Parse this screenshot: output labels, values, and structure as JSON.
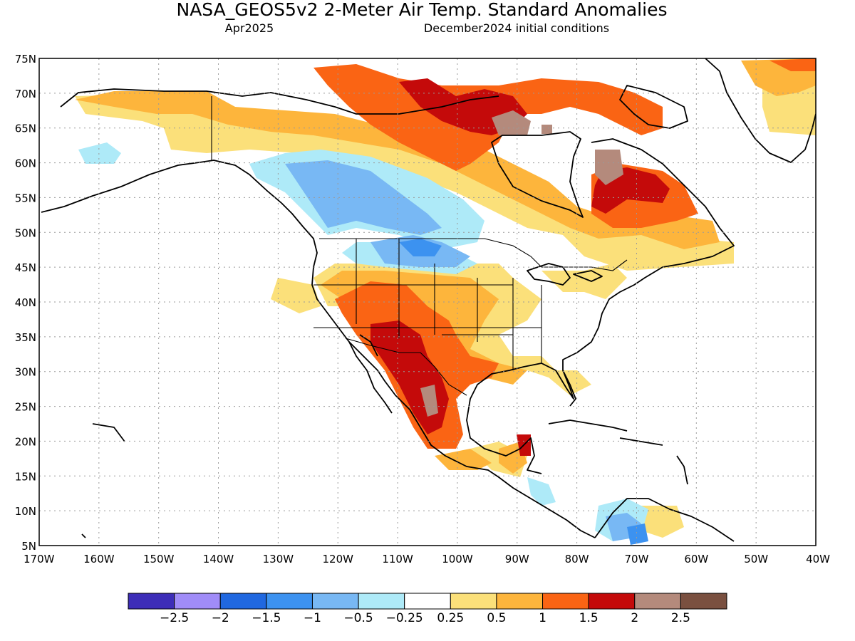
{
  "header": {
    "title": "NASA_GEOS5v2 2-Meter Air Temp. Standard Anomalies",
    "target_month": "Apr2025",
    "init_conditions": "December2024 initial conditions"
  },
  "map": {
    "lat_labels": [
      "75N",
      "70N",
      "65N",
      "60N",
      "55N",
      "50N",
      "45N",
      "40N",
      "35N",
      "30N",
      "25N",
      "20N",
      "15N",
      "10N",
      "5N"
    ],
    "lon_labels": [
      "170W",
      "160W",
      "150W",
      "140W",
      "130W",
      "120W",
      "110W",
      "100W",
      "90W",
      "80W",
      "70W",
      "60W",
      "50W",
      "40W"
    ],
    "lat_range": [
      5,
      75
    ],
    "lon_range": [
      -170,
      -40
    ],
    "grid": "dotted"
  },
  "legend": {
    "colors": [
      "#3d2db8",
      "#a08cf8",
      "#2068e0",
      "#3c92f0",
      "#78b8f4",
      "#aeeaf8",
      "#ffffff",
      "#fbe07a",
      "#fdb53c",
      "#fa6414",
      "#c40a0a",
      "#b48a7c",
      "#7a5040"
    ],
    "labels": [
      "−2.5",
      "−2",
      "−1.5",
      "−1",
      "−0.5",
      "−0.25",
      "0.25",
      "0.5",
      "1",
      "1.5",
      "2",
      "2.5"
    ]
  }
}
